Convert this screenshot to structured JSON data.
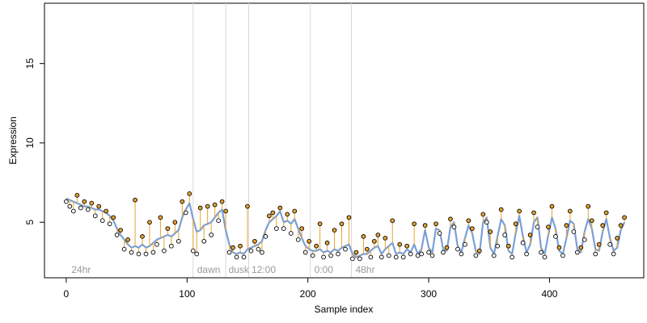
{
  "chart_data": {
    "type": "line",
    "title": "",
    "xlabel": "Sample index",
    "ylabel": "Expression",
    "xlim": [
      -18,
      478
    ],
    "ylim": [
      1.5,
      18.8
    ],
    "x_ticks": [
      0,
      100,
      200,
      300,
      400
    ],
    "y_ticks": [
      5,
      10,
      15
    ],
    "grid": false,
    "legend": "none",
    "colors": {
      "fitted_line": "#7b9fd4",
      "residual": "#e8a330",
      "point_fill": "#e8a330",
      "divider": "#d9d9d9",
      "condition_label": "#9a9a9a"
    },
    "divider_x": [
      105,
      132,
      151,
      202,
      236
    ],
    "condition_labels": [
      {
        "x": 3,
        "label": "24hr"
      },
      {
        "x": 107,
        "label": "dawn"
      },
      {
        "x": 133,
        "label": "dusk"
      },
      {
        "x": 152,
        "label": "12:00"
      },
      {
        "x": 204,
        "label": "0:00"
      },
      {
        "x": 238,
        "label": "48hr"
      }
    ],
    "series": [
      {
        "values": [
          [
            0,
            6.5,
            6.3
          ],
          [
            3,
            6.4,
            6.0
          ],
          [
            6,
            6.3,
            5.7
          ],
          [
            9,
            6.2,
            6.7
          ],
          [
            12,
            6.1,
            5.9
          ],
          [
            15,
            6.0,
            6.3
          ],
          [
            18,
            6.0,
            5.8
          ],
          [
            21,
            5.9,
            6.2
          ],
          [
            24,
            5.8,
            5.4
          ],
          [
            27,
            5.8,
            6.0
          ],
          [
            30,
            5.7,
            5.1
          ],
          [
            33,
            5.6,
            5.7
          ],
          [
            36,
            5.4,
            4.9
          ],
          [
            39,
            5.1,
            5.3
          ],
          [
            42,
            4.6,
            4.2
          ],
          [
            45,
            4.2,
            4.5
          ],
          [
            48,
            3.9,
            3.3
          ],
          [
            51,
            3.6,
            3.9
          ],
          [
            54,
            3.4,
            3.1
          ],
          [
            57,
            3.5,
            6.4
          ],
          [
            60,
            3.4,
            3.0
          ],
          [
            63,
            3.6,
            4.1
          ],
          [
            66,
            3.4,
            3.0
          ],
          [
            69,
            3.5,
            5.0
          ],
          [
            72,
            3.7,
            3.1
          ],
          [
            75,
            3.9,
            3.6
          ],
          [
            78,
            4.0,
            5.3
          ],
          [
            81,
            4.1,
            3.2
          ],
          [
            84,
            4.2,
            4.6
          ],
          [
            87,
            4.1,
            3.5
          ],
          [
            90,
            4.3,
            5.0
          ],
          [
            93,
            4.5,
            3.8
          ],
          [
            96,
            5.3,
            6.3
          ],
          [
            99,
            5.8,
            5.6
          ],
          [
            102,
            6.2,
            6.8
          ],
          [
            105,
            5.2,
            3.2
          ],
          [
            108,
            4.4,
            3.0
          ],
          [
            111,
            4.5,
            5.9
          ],
          [
            114,
            4.8,
            3.8
          ],
          [
            117,
            4.9,
            6.0
          ],
          [
            120,
            5.0,
            4.2
          ],
          [
            123,
            5.3,
            6.1
          ],
          [
            126,
            5.6,
            5.1
          ],
          [
            129,
            5.8,
            6.3
          ],
          [
            132,
            4.5,
            5.7
          ],
          [
            135,
            3.6,
            3.1
          ],
          [
            138,
            3.1,
            3.4
          ],
          [
            141,
            3.0,
            2.8
          ],
          [
            144,
            3.1,
            3.5
          ],
          [
            147,
            3.0,
            2.8
          ],
          [
            150,
            3.3,
            6.0
          ],
          [
            153,
            3.4,
            3.2
          ],
          [
            156,
            3.5,
            3.8
          ],
          [
            159,
            3.6,
            3.3
          ],
          [
            162,
            3.8,
            3.1
          ],
          [
            165,
            4.5,
            4.1
          ],
          [
            168,
            5.0,
            5.4
          ],
          [
            171,
            5.2,
            5.6
          ],
          [
            174,
            5.4,
            4.6
          ],
          [
            177,
            5.7,
            5.9
          ],
          [
            180,
            5.0,
            4.6
          ],
          [
            183,
            5.1,
            5.5
          ],
          [
            186,
            4.9,
            4.3
          ],
          [
            189,
            5.2,
            5.7
          ],
          [
            192,
            4.6,
            3.9
          ],
          [
            195,
            4.0,
            4.6
          ],
          [
            198,
            3.5,
            3.1
          ],
          [
            201,
            3.3,
            3.8
          ],
          [
            204,
            3.2,
            2.9
          ],
          [
            207,
            3.2,
            3.5
          ],
          [
            210,
            3.3,
            4.9
          ],
          [
            213,
            3.1,
            2.8
          ],
          [
            216,
            3.2,
            3.7
          ],
          [
            219,
            3.1,
            2.9
          ],
          [
            222,
            3.3,
            4.5
          ],
          [
            225,
            3.2,
            3.0
          ],
          [
            228,
            3.4,
            4.9
          ],
          [
            231,
            3.5,
            3.3
          ],
          [
            234,
            3.6,
            5.3
          ],
          [
            237,
            3.0,
            2.7
          ],
          [
            240,
            2.8,
            3.1
          ],
          [
            243,
            2.9,
            2.7
          ],
          [
            246,
            3.0,
            4.1
          ],
          [
            249,
            3.0,
            3.3
          ],
          [
            252,
            3.2,
            2.8
          ],
          [
            255,
            3.4,
            3.8
          ],
          [
            258,
            3.5,
            4.2
          ],
          [
            261,
            3.0,
            2.8
          ],
          [
            264,
            3.3,
            4.0
          ],
          [
            267,
            3.5,
            2.9
          ],
          [
            270,
            3.7,
            5.1
          ],
          [
            273,
            3.0,
            2.8
          ],
          [
            276,
            3.1,
            3.6
          ],
          [
            279,
            3.0,
            2.8
          ],
          [
            282,
            3.3,
            3.5
          ],
          [
            285,
            3.1,
            3.0
          ],
          [
            288,
            3.6,
            4.9
          ],
          [
            291,
            3.0,
            2.9
          ],
          [
            294,
            3.3,
            3.0
          ],
          [
            297,
            4.5,
            4.8
          ],
          [
            300,
            3.4,
            3.1
          ],
          [
            303,
            3.1,
            2.9
          ],
          [
            306,
            4.6,
            4.9
          ],
          [
            309,
            4.5,
            4.3
          ],
          [
            312,
            3.3,
            3.1
          ],
          [
            315,
            3.2,
            3.4
          ],
          [
            318,
            4.7,
            5.2
          ],
          [
            321,
            5.0,
            4.7
          ],
          [
            324,
            3.5,
            3.3
          ],
          [
            327,
            3.1,
            3.0
          ],
          [
            330,
            4.0,
            3.6
          ],
          [
            333,
            4.8,
            5.1
          ],
          [
            336,
            4.3,
            4.6
          ],
          [
            339,
            3.2,
            2.9
          ],
          [
            342,
            3.0,
            3.2
          ],
          [
            345,
            5.0,
            5.5
          ],
          [
            348,
            5.3,
            5.0
          ],
          [
            351,
            3.4,
            4.4
          ],
          [
            354,
            3.0,
            2.9
          ],
          [
            357,
            4.1,
            3.5
          ],
          [
            360,
            5.2,
            5.8
          ],
          [
            363,
            4.8,
            4.2
          ],
          [
            366,
            3.2,
            3.5
          ],
          [
            369,
            3.0,
            2.8
          ],
          [
            372,
            4.3,
            4.9
          ],
          [
            375,
            5.4,
            5.7
          ],
          [
            378,
            4.1,
            3.7
          ],
          [
            381,
            3.1,
            3.0
          ],
          [
            384,
            3.6,
            4.2
          ],
          [
            387,
            5.0,
            5.6
          ],
          [
            390,
            5.3,
            4.7
          ],
          [
            393,
            3.4,
            3.1
          ],
          [
            396,
            3.0,
            2.8
          ],
          [
            399,
            4.2,
            4.7
          ],
          [
            402,
            5.3,
            6.0
          ],
          [
            405,
            4.6,
            4.1
          ],
          [
            408,
            3.2,
            3.4
          ],
          [
            411,
            3.0,
            2.9
          ],
          [
            414,
            4.0,
            4.8
          ],
          [
            417,
            5.1,
            5.7
          ],
          [
            420,
            4.9,
            4.4
          ],
          [
            423,
            3.3,
            3.1
          ],
          [
            426,
            3.1,
            3.4
          ],
          [
            429,
            4.4,
            3.9
          ],
          [
            432,
            5.2,
            6.0
          ],
          [
            435,
            4.6,
            5.1
          ],
          [
            438,
            3.3,
            3.0
          ],
          [
            441,
            3.2,
            3.6
          ],
          [
            444,
            4.4,
            4.8
          ],
          [
            447,
            5.2,
            5.6
          ],
          [
            450,
            4.0,
            3.6
          ],
          [
            453,
            3.2,
            3.0
          ],
          [
            456,
            3.4,
            4.0
          ],
          [
            459,
            4.5,
            4.8
          ],
          [
            462,
            5.0,
            5.3
          ]
        ]
      }
    ]
  }
}
